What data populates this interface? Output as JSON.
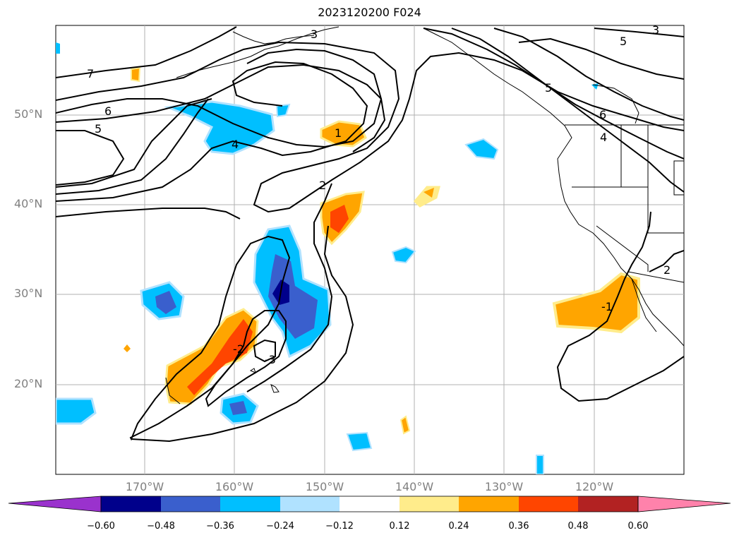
{
  "title": "2023120200 F024",
  "lat_labels": [
    "50°N",
    "40°N",
    "30°N",
    "20°N"
  ],
  "lon_labels": [
    "170°W",
    "160°W",
    "150°W",
    "140°W",
    "130°W",
    "120°W"
  ],
  "contour_labels": [
    "7",
    "6",
    "5",
    "4",
    "3",
    "1",
    "2",
    "5",
    "5",
    "6",
    "4",
    "-1",
    "-2",
    "-3",
    "2",
    "3"
  ],
  "colorbar": {
    "ticks": [
      "−0.60",
      "−0.48",
      "−0.36",
      "−0.24",
      "−0.12",
      "0.12",
      "0.24",
      "0.36",
      "0.48",
      "0.60"
    ],
    "colors": [
      "#9a32cd",
      "#00008b",
      "#3a5fcd",
      "#00bfff",
      "#b0e2ff",
      "#ffffff",
      "#ffec8b",
      "#ffa500",
      "#ff4500",
      "#b22222",
      "#ff82ab"
    ]
  }
}
